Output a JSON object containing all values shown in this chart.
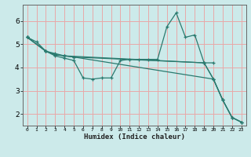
{
  "title": "",
  "xlabel": "Humidex (Indice chaleur)",
  "ylabel": "",
  "bg_color": "#cceaea",
  "line_color": "#2a7a6f",
  "grid_color": "#e8a8a8",
  "xlim": [
    -0.5,
    23.5
  ],
  "ylim": [
    1.5,
    6.7
  ],
  "xticks": [
    0,
    1,
    2,
    3,
    4,
    5,
    6,
    7,
    8,
    9,
    10,
    11,
    12,
    13,
    14,
    15,
    16,
    17,
    18,
    19,
    20,
    21,
    22,
    23
  ],
  "yticks": [
    2,
    3,
    4,
    5,
    6
  ],
  "lines": [
    {
      "x": [
        0,
        1,
        2,
        3,
        4,
        5,
        6,
        7,
        8,
        9,
        10,
        11,
        12,
        13,
        14,
        15,
        16,
        17,
        18,
        19,
        20,
        21,
        22,
        23
      ],
      "y": [
        5.3,
        5.1,
        4.7,
        4.5,
        4.4,
        4.3,
        3.55,
        3.5,
        3.55,
        3.55,
        4.3,
        4.35,
        4.35,
        4.35,
        4.35,
        5.75,
        6.35,
        5.3,
        5.4,
        4.2,
        3.5,
        2.6,
        1.85,
        1.65
      ]
    },
    {
      "x": [
        0,
        2,
        3,
        4,
        5,
        20,
        21,
        22,
        23
      ],
      "y": [
        5.3,
        4.7,
        4.55,
        4.5,
        4.45,
        3.5,
        2.6,
        1.85,
        1.65
      ]
    },
    {
      "x": [
        0,
        2,
        3,
        4,
        5,
        19,
        20,
        21,
        22,
        23
      ],
      "y": [
        5.3,
        4.7,
        4.55,
        4.5,
        4.45,
        4.2,
        3.5,
        2.6,
        1.85,
        1.65
      ]
    },
    {
      "x": [
        0,
        2,
        3,
        4,
        19,
        20
      ],
      "y": [
        5.3,
        4.7,
        4.6,
        4.5,
        4.2,
        4.2
      ]
    }
  ]
}
